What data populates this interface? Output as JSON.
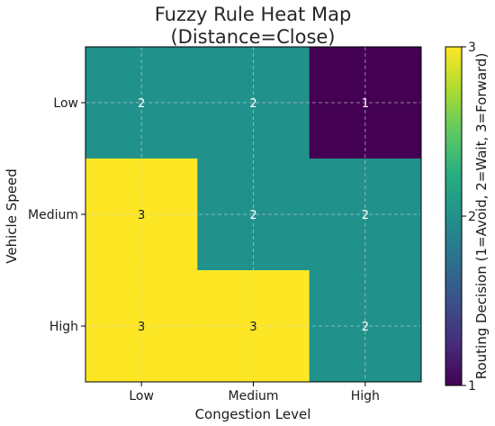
{
  "chart_data": {
    "type": "heatmap",
    "title_line1": "Fuzzy Rule Heat Map",
    "title_line2": "(Distance=Close)",
    "xlabel": "Congestion Level",
    "ylabel": "Vehicle Speed",
    "x_categories": [
      "Low",
      "Medium",
      "High"
    ],
    "y_categories": [
      "Low",
      "Medium",
      "High"
    ],
    "values": [
      [
        2,
        2,
        1
      ],
      [
        3,
        2,
        2
      ],
      [
        3,
        3,
        2
      ]
    ],
    "colorbar": {
      "label": "Routing Decision (1=Avoid, 2=Wait, 3=Forward)",
      "min": 1,
      "max": 3,
      "ticks": [
        "1",
        "2",
        "3"
      ],
      "colormap": "viridis"
    },
    "colors": {
      "low": "#440154",
      "mid": "#21918c",
      "high": "#fde725"
    },
    "grid": true,
    "annotations": true
  }
}
